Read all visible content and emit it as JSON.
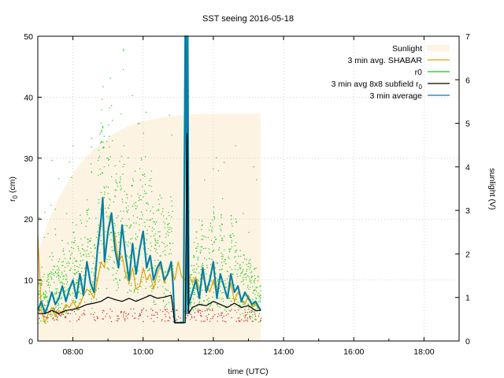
{
  "chart_data": {
    "type": "line",
    "title": "SST seeing 2016-05-18",
    "xlabel": "time (UTC)",
    "ylabel": "r",
    "ylabel_sub": "0",
    "ylabel_suffix": " (cm)",
    "y2label": "sunlight (V)",
    "xlim": [
      7.0,
      19.0
    ],
    "ylim": [
      0,
      50
    ],
    "y2lim": [
      0,
      7
    ],
    "x_ticks": [
      {
        "value": 8,
        "label": "08:00"
      },
      {
        "value": 10,
        "label": "10:00"
      },
      {
        "value": 12,
        "label": "12:00"
      },
      {
        "value": 14,
        "label": "14:00"
      },
      {
        "value": 16,
        "label": "16:00"
      },
      {
        "value": 18,
        "label": "18:00"
      }
    ],
    "y_ticks": [
      0,
      10,
      20,
      30,
      40,
      50
    ],
    "y2_ticks": [
      0,
      1,
      2,
      3,
      4,
      5,
      6,
      7
    ],
    "grid": true,
    "legend_position": "top-right",
    "legend": [
      {
        "key": "sunlight",
        "label": "Sunlight",
        "sub": "",
        "style": "fill"
      },
      {
        "key": "shabar",
        "label": "3 min avg. SHABAR",
        "sub": "",
        "style": "line"
      },
      {
        "key": "r0",
        "label": "r0",
        "sub": "",
        "style": "line"
      },
      {
        "key": "subfield",
        "label": "3 min avg 8x8 subfield r",
        "sub": "0",
        "style": "line"
      },
      {
        "key": "avg",
        "label": "3 min average",
        "sub": "",
        "style": "line"
      }
    ],
    "colors": {
      "sunlight": "#fdf3e3",
      "shabar": "#e6a000",
      "r0": "#11cc11",
      "subfield": "#000000",
      "avg": "#1070b0",
      "avg_outline": "#00a090",
      "red_dots": "#cc2222"
    },
    "series": [
      {
        "name": "Sunlight",
        "axis": "y2",
        "x": [
          7.0,
          7.3,
          7.6,
          8.0,
          8.4,
          8.8,
          9.2,
          9.6,
          10.0,
          10.5,
          11.0,
          11.5,
          12.0,
          12.5,
          13.0,
          13.35
        ],
        "y": [
          2.0,
          2.75,
          3.3,
          3.85,
          4.25,
          4.55,
          4.78,
          4.94,
          5.05,
          5.13,
          5.18,
          5.21,
          5.22,
          5.22,
          5.22,
          5.22
        ]
      },
      {
        "name": "3 min avg. SHABAR",
        "axis": "y",
        "x": [
          7.0,
          7.1,
          7.2,
          7.3,
          7.4,
          7.5,
          7.6,
          7.7,
          7.8,
          7.9,
          8.0,
          8.1,
          8.2,
          8.3,
          8.4,
          8.5,
          8.6,
          8.7,
          8.8,
          8.9,
          9.0,
          9.1,
          9.2,
          9.3,
          9.4,
          9.5,
          9.6,
          9.7,
          9.8,
          9.9,
          10.0,
          10.1,
          10.2,
          10.3,
          10.4,
          10.5,
          10.6,
          10.7,
          10.8,
          10.9,
          11.0,
          11.1,
          11.2,
          11.25,
          11.3,
          11.4,
          11.5,
          11.6,
          11.7,
          11.8,
          11.9,
          12.0,
          12.1,
          12.2,
          12.3,
          12.4,
          12.5,
          12.6,
          12.7,
          12.8,
          12.9,
          13.0,
          13.1,
          13.2,
          13.35
        ],
        "y": [
          17.5,
          5.0,
          3.0,
          4.5,
          5.5,
          4.0,
          5.0,
          4.5,
          6.0,
          5.5,
          6.5,
          5.5,
          6.0,
          7.5,
          8.5,
          8.0,
          7.0,
          10.0,
          13.0,
          12.0,
          18.0,
          20.0,
          17.0,
          13.0,
          14.0,
          11.0,
          9.5,
          12.0,
          8.5,
          9.0,
          12.0,
          10.0,
          11.0,
          8.5,
          11.0,
          12.5,
          9.5,
          11.0,
          12.0,
          10.0,
          13.0,
          10.5,
          10.0,
          10.5,
          11.0,
          9.5,
          10.5,
          8.5,
          10.5,
          9.0,
          8.0,
          10.0,
          7.5,
          11.0,
          9.0,
          7.0,
          9.5,
          6.5,
          8.0,
          7.0,
          6.0,
          7.5,
          5.5,
          6.0,
          5.0
        ]
      },
      {
        "name": "3 min avg 8x8 subfield r0",
        "axis": "y",
        "x": [
          7.0,
          7.2,
          7.4,
          7.6,
          7.8,
          8.0,
          8.2,
          8.4,
          8.6,
          8.8,
          9.0,
          9.2,
          9.4,
          9.6,
          9.8,
          10.0,
          10.2,
          10.4,
          10.6,
          10.8,
          10.9,
          11.0,
          11.1,
          11.15,
          11.2,
          11.25,
          11.3,
          11.4,
          11.6,
          11.8,
          12.0,
          12.2,
          12.4,
          12.6,
          12.8,
          13.0,
          13.2,
          13.35
        ],
        "y": [
          4.5,
          4.5,
          5.0,
          4.5,
          5.0,
          5.2,
          5.5,
          6.0,
          6.2,
          6.5,
          7.2,
          6.8,
          6.5,
          7.0,
          6.5,
          7.0,
          7.5,
          7.0,
          7.2,
          7.5,
          3.0,
          3.0,
          3.0,
          3.0,
          3.0,
          34.0,
          4.5,
          5.5,
          6.0,
          5.8,
          6.5,
          6.0,
          5.5,
          6.2,
          5.5,
          5.8,
          5.0,
          5.0
        ]
      },
      {
        "name": "3 min average",
        "axis": "y",
        "x": [
          7.0,
          7.1,
          7.2,
          7.3,
          7.4,
          7.5,
          7.6,
          7.7,
          7.8,
          7.9,
          8.0,
          8.1,
          8.2,
          8.3,
          8.4,
          8.5,
          8.6,
          8.7,
          8.8,
          8.85,
          8.9,
          9.0,
          9.1,
          9.2,
          9.3,
          9.4,
          9.5,
          9.6,
          9.7,
          9.8,
          9.9,
          10.0,
          10.1,
          10.2,
          10.3,
          10.4,
          10.5,
          10.6,
          10.7,
          10.8,
          10.85,
          10.9,
          11.0,
          11.1,
          11.15,
          11.2,
          11.22,
          11.25,
          11.27,
          11.3,
          11.4,
          11.5,
          11.6,
          11.7,
          11.8,
          11.9,
          12.0,
          12.1,
          12.2,
          12.3,
          12.4,
          12.5,
          12.6,
          12.7,
          12.8,
          12.9,
          13.0,
          13.1,
          13.2,
          13.35
        ],
        "y": [
          5.0,
          6.5,
          4.5,
          6.0,
          8.0,
          6.0,
          7.0,
          9.0,
          6.5,
          8.5,
          10.0,
          7.0,
          11.0,
          7.5,
          13.0,
          9.5,
          8.0,
          15.0,
          20.0,
          23.5,
          13.0,
          18.0,
          21.0,
          15.0,
          12.0,
          19.0,
          14.0,
          10.0,
          16.0,
          11.0,
          15.0,
          18.0,
          12.0,
          14.0,
          10.0,
          12.0,
          13.0,
          10.0,
          11.0,
          13.0,
          9.5,
          3.0,
          3.0,
          3.0,
          3.0,
          55.0,
          55.0,
          4.5,
          55.0,
          6.0,
          8.0,
          10.0,
          7.0,
          12.0,
          8.0,
          10.0,
          13.0,
          7.0,
          11.0,
          9.0,
          7.0,
          11.0,
          8.0,
          9.0,
          6.5,
          8.0,
          7.0,
          6.0,
          6.5,
          5.0
        ]
      }
    ]
  }
}
